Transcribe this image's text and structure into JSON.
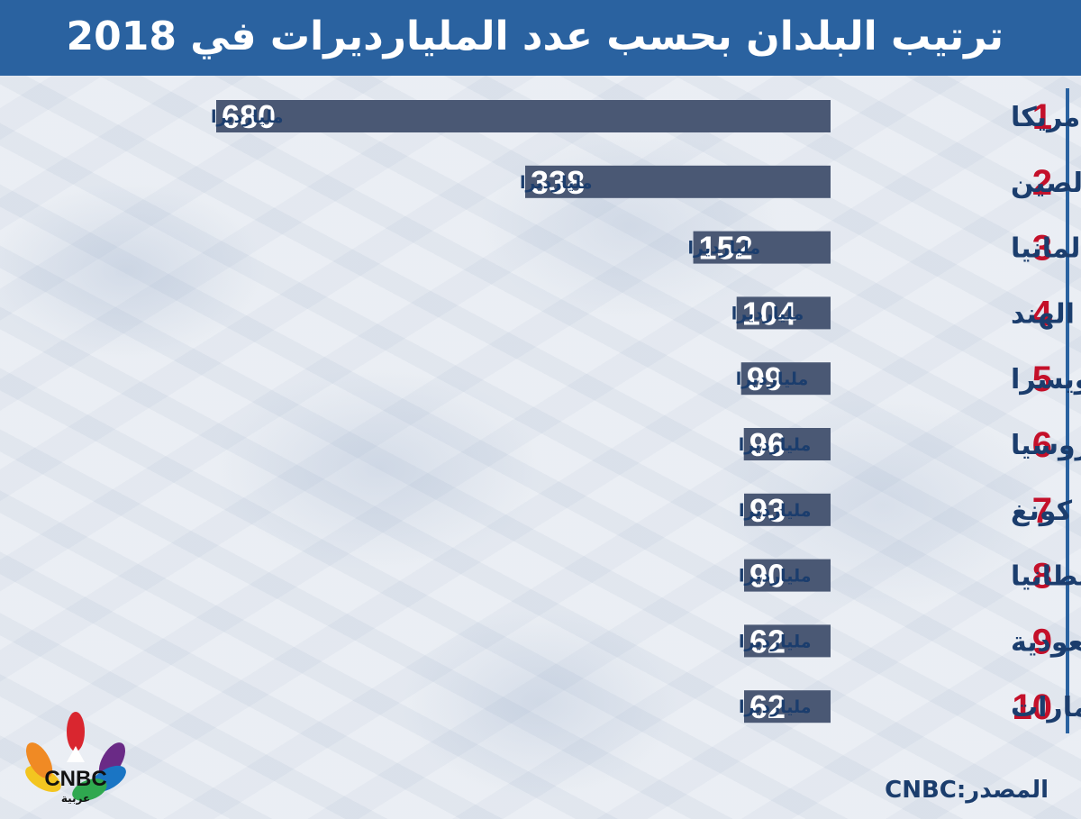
{
  "header": {
    "title": "ترتيب البلدان بحسب عدد المليارديرات في 2018"
  },
  "source": "المصدر:CNBC",
  "logo": {
    "text": "CNBC",
    "subtext": "عربية"
  },
  "colors": {
    "header": "#2a62a0",
    "bar": "#4a5874",
    "rank": "#c4102a",
    "text": "#1b3d6d"
  },
  "chart_data": {
    "type": "bar",
    "orientation": "horizontal",
    "unit_label": "مليارديرا",
    "ranks": [
      "1",
      "2",
      "3",
      "4",
      "5",
      "6",
      "7",
      "8",
      "9",
      "10"
    ],
    "categories": [
      "أمريكا",
      "الصين",
      "ألمانيا",
      "الهند",
      "سويسرا",
      "روسيا",
      "هونغ كونغ",
      "بريطانيا",
      "السعودية",
      "الإمارات"
    ],
    "values": [
      680,
      338,
      152,
      104,
      99,
      96,
      93,
      90,
      62,
      62
    ]
  }
}
